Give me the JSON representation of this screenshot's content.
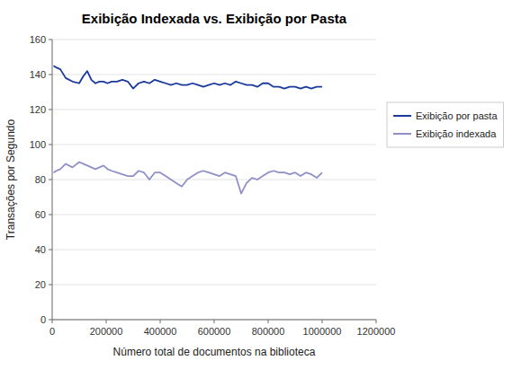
{
  "chart_data": {
    "type": "line",
    "title": "Exibição Indexada vs. Exibição por Pasta",
    "xlabel": "Número total de documentos na biblioteca",
    "ylabel": "Transações por Segundo",
    "xlim": [
      0,
      1200000
    ],
    "ylim": [
      0,
      160
    ],
    "xticks": [
      0,
      200000,
      400000,
      600000,
      800000,
      1000000,
      1200000
    ],
    "yticks": [
      0,
      20,
      40,
      60,
      80,
      100,
      120,
      140,
      160
    ],
    "grid": "y",
    "legend": "right",
    "x": [
      5000,
      15000,
      30000,
      50000,
      75000,
      100000,
      115000,
      130000,
      145000,
      160000,
      175000,
      190000,
      205000,
      220000,
      240000,
      260000,
      280000,
      300000,
      320000,
      340000,
      360000,
      380000,
      400000,
      420000,
      440000,
      460000,
      480000,
      500000,
      520000,
      540000,
      560000,
      580000,
      600000,
      620000,
      640000,
      660000,
      680000,
      700000,
      720000,
      740000,
      760000,
      780000,
      800000,
      820000,
      840000,
      860000,
      880000,
      900000,
      920000,
      940000,
      960000,
      980000,
      1000000
    ],
    "series": [
      {
        "name": "Exibição por pasta",
        "color": "#1a3a9c",
        "values": [
          145,
          144,
          143,
          138,
          136,
          135,
          139,
          142,
          137,
          135,
          136,
          136,
          135,
          136,
          136,
          137,
          136,
          132,
          135,
          136,
          135,
          137,
          136,
          135,
          134,
          135,
          134,
          134,
          135,
          134,
          133,
          134,
          135,
          134,
          135,
          134,
          136,
          135,
          134,
          134,
          133,
          135,
          135,
          133,
          133,
          132,
          133,
          133,
          132,
          133,
          132,
          133,
          133
        ]
      },
      {
        "name": "Exibição indexada",
        "color": "#9090c8",
        "values": [
          84,
          85,
          86,
          89,
          87,
          90,
          89,
          88,
          87,
          86,
          87,
          88,
          86,
          85,
          84,
          83,
          82,
          82,
          85,
          84,
          80,
          84,
          84,
          82,
          80,
          78,
          76,
          80,
          82,
          84,
          85,
          84,
          83,
          82,
          84,
          83,
          82,
          72,
          78,
          81,
          80,
          82,
          84,
          85,
          84,
          84,
          83,
          84,
          82,
          84,
          83,
          81,
          84
        ]
      }
    ]
  }
}
